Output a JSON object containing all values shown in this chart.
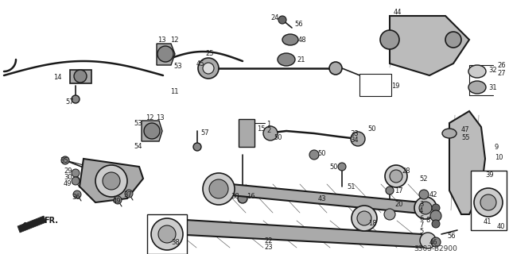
{
  "fig_width": 6.4,
  "fig_height": 3.2,
  "dpi": 100,
  "background_color": "#ffffff",
  "image_data_b64": ""
}
